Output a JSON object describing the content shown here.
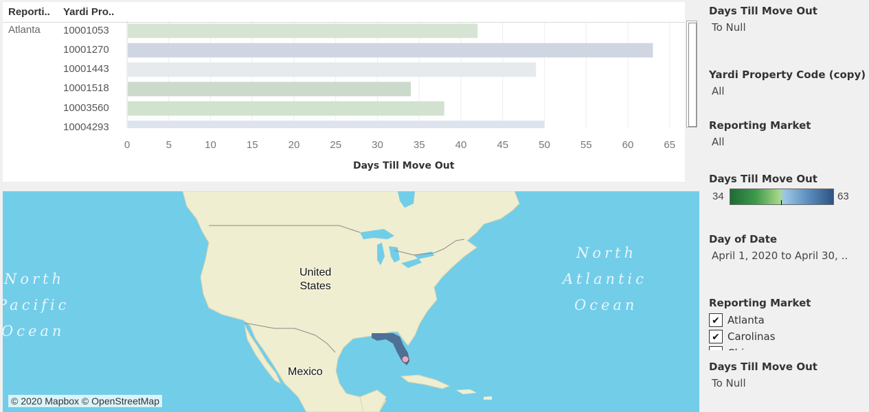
{
  "chart": {
    "header_market": "Reporti..",
    "header_code": "Yardi Pro..",
    "market": "Atlanta",
    "x_title": "Days Till Move Out",
    "chart_data": {
      "type": "bar",
      "orientation": "horizontal",
      "categories": [
        "10001053",
        "10001270",
        "10001443",
        "10001518",
        "10003560",
        "10004293"
      ],
      "values": [
        42,
        63,
        49,
        34,
        38,
        50
      ],
      "colors": [
        "#d6e4d4",
        "#cfd6e2",
        "#e6eaed",
        "#cbdaca",
        "#d1e2cf",
        "#dde4ee"
      ],
      "xlabel": "Days Till Move Out",
      "xlim": [
        0,
        67
      ],
      "ticks": [
        0,
        5,
        10,
        15,
        20,
        25,
        30,
        35,
        40,
        45,
        50,
        55,
        60,
        65
      ],
      "grid": true
    }
  },
  "map": {
    "ocean_north_atlantic": [
      "North",
      "Atlantic",
      "Ocean"
    ],
    "ocean_north_pacific": [
      "North",
      "Pacific",
      "Ocean"
    ],
    "country_us": [
      "United",
      "States"
    ],
    "country_mexico": "Mexico",
    "credit": "© 2020 Mapbox © OpenStreetMap",
    "highlight_color": "#4e7095",
    "marker_color": "#e7a9c9"
  },
  "filters": {
    "f1": {
      "title": "Days Till Move Out",
      "value": "To Null"
    },
    "f2": {
      "title": "Yardi Property Code (copy)",
      "value": "All"
    },
    "f3": {
      "title": "Reporting Market",
      "value": "All"
    },
    "legend": {
      "title": "Days Till Move Out",
      "min": "34",
      "max": "63"
    },
    "f4": {
      "title": "Day of Date",
      "value": "April 1, 2020 to April 30, .."
    },
    "f5": {
      "title": "Reporting Market",
      "items": [
        "Atlanta",
        "Carolinas",
        "Chicago"
      ]
    },
    "f6": {
      "title": "Days Till Move Out",
      "value": "To Null"
    }
  }
}
